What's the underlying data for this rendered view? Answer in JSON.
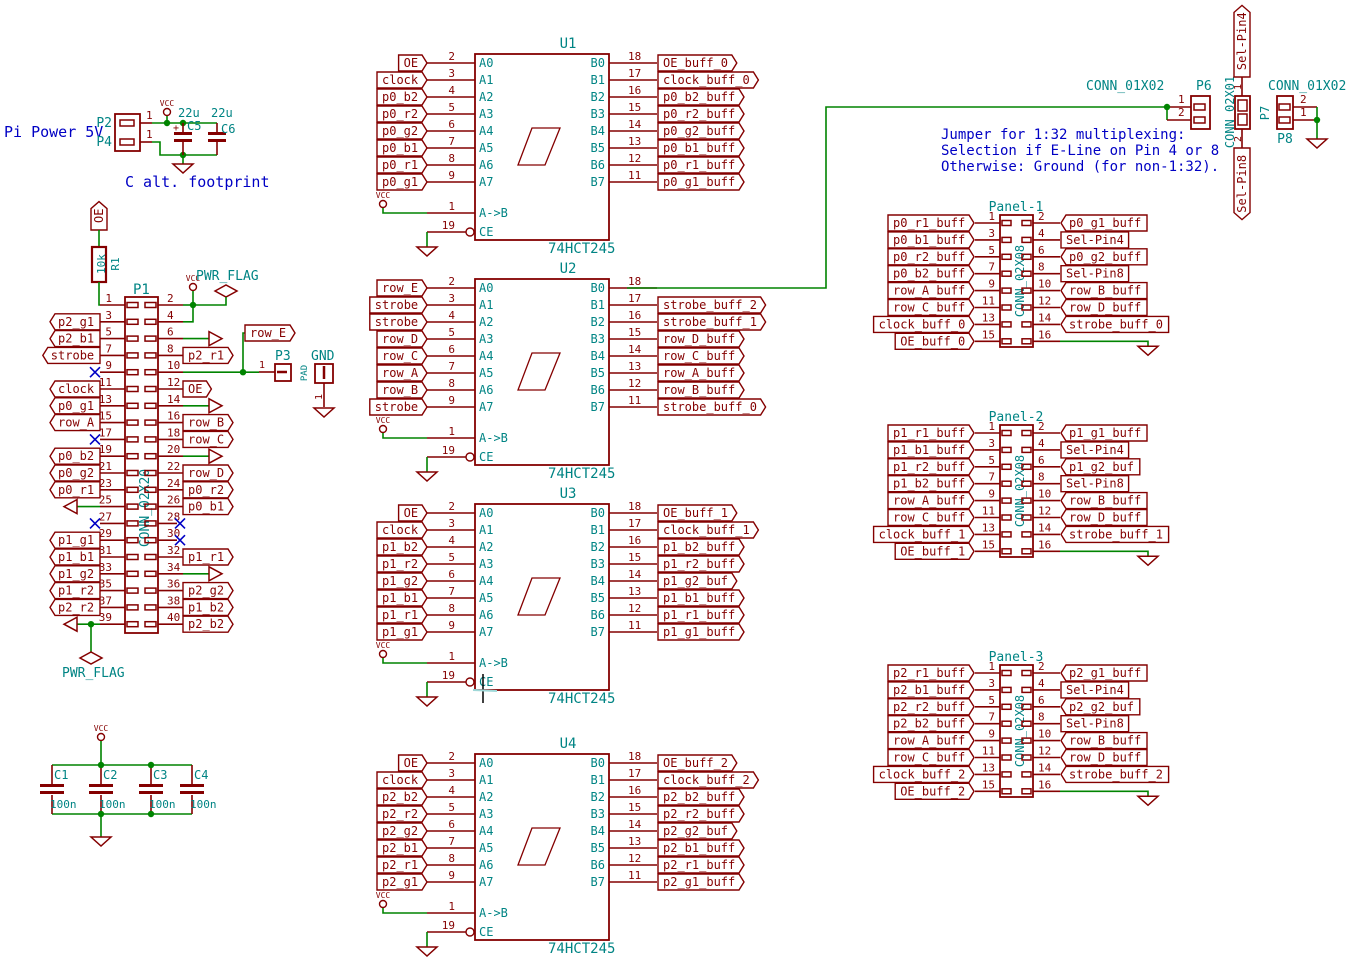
{
  "colors": {
    "wire": "#008400",
    "component": "#840000",
    "field": "#008484",
    "note": "#0000C4",
    "noconnect": "#0000C4"
  },
  "texts": {
    "pi_power": "Pi Power 5V",
    "c_alt": "C alt. footprint",
    "vcc": "VCC",
    "pwr_flag": "PWR_FLAG",
    "row_e": "row_E"
  },
  "jumper_note": [
    "Jumper for 1:32 multiplexing:",
    "Selection if E-Line on Pin 4 or 8",
    "Otherwise: Ground (for non-1:32)."
  ],
  "power_conn": {
    "p2": {
      "ref": "P2",
      "pin": "1"
    },
    "p4": {
      "ref": "P4",
      "pin": "1"
    },
    "c5": {
      "ref": "C5",
      "value": "22u",
      "plus": "+"
    },
    "c6": {
      "ref": "C6",
      "value": "22u"
    }
  },
  "r1": {
    "ref": "R1",
    "value": "10k",
    "label": "OE"
  },
  "p3": {
    "ref": "P3",
    "pin": "1",
    "pad": "PAD"
  },
  "gnd_pad": {
    "ref": "GND",
    "pin": "1"
  },
  "caps": [
    [
      "C1",
      "100n"
    ],
    [
      "C2",
      "100n"
    ],
    [
      "C3",
      "100n"
    ],
    [
      "C4",
      "100n"
    ]
  ],
  "p1": {
    "ref": "P1",
    "value": "CONN_02X20",
    "left": [
      {
        "num": "1"
      },
      {
        "num": "3",
        "label": "p2_g1"
      },
      {
        "num": "5",
        "label": "p2_b1"
      },
      {
        "num": "7",
        "label": "strobe"
      },
      {
        "num": "9",
        "nc": true
      },
      {
        "num": "11",
        "label": "clock"
      },
      {
        "num": "13",
        "label": "p0_g1"
      },
      {
        "num": "15",
        "label": "row_A"
      },
      {
        "num": "17",
        "nc": true
      },
      {
        "num": "19",
        "label": "p0_b2"
      },
      {
        "num": "21",
        "label": "p0_g2"
      },
      {
        "num": "23",
        "label": "p0_r1"
      },
      {
        "num": "25",
        "gnd": true
      },
      {
        "num": "27",
        "nc": true
      },
      {
        "num": "29",
        "label": "p1_g1"
      },
      {
        "num": "31",
        "label": "p1_b1"
      },
      {
        "num": "33",
        "label": "p1_g2"
      },
      {
        "num": "35",
        "label": "p1_r2"
      },
      {
        "num": "37",
        "label": "p2_r2"
      },
      {
        "num": "39",
        "gnd": true
      }
    ],
    "right": [
      {
        "num": "2"
      },
      {
        "num": "4"
      },
      {
        "num": "6",
        "gnd": true
      },
      {
        "num": "8",
        "label": "p2_r1"
      },
      {
        "num": "10"
      },
      {
        "num": "12",
        "label": "OE"
      },
      {
        "num": "14",
        "gnd": true
      },
      {
        "num": "16",
        "label": "row_B"
      },
      {
        "num": "18",
        "label": "row_C"
      },
      {
        "num": "20",
        "gnd": true
      },
      {
        "num": "22",
        "label": "row_D"
      },
      {
        "num": "24",
        "label": "p0_r2"
      },
      {
        "num": "26",
        "label": "p0_b1"
      },
      {
        "num": "28",
        "nc": true
      },
      {
        "num": "30",
        "nc": true
      },
      {
        "num": "32",
        "label": "p1_r1"
      },
      {
        "num": "34",
        "gnd": true
      },
      {
        "num": "36",
        "label": "p2_g2"
      },
      {
        "num": "38",
        "label": "p1_b2"
      },
      {
        "num": "40",
        "label": "p2_b2"
      }
    ]
  },
  "ics": [
    {
      "ref": "U1",
      "value": "74HCT245",
      "dir_pin": {
        "num": "1",
        "name": "A->B"
      },
      "en_pin": {
        "num": "19",
        "name": "CE"
      },
      "left": [
        [
          "2",
          "A0",
          "OE"
        ],
        [
          "3",
          "A1",
          "clock"
        ],
        [
          "4",
          "A2",
          "p0_b2"
        ],
        [
          "5",
          "A3",
          "p0_r2"
        ],
        [
          "6",
          "A4",
          "p0_g2"
        ],
        [
          "7",
          "A5",
          "p0_b1"
        ],
        [
          "8",
          "A6",
          "p0_r1"
        ],
        [
          "9",
          "A7",
          "p0_g1"
        ]
      ],
      "right": [
        [
          "18",
          "B0",
          "OE_buff_0"
        ],
        [
          "17",
          "B1",
          "clock_buff_0"
        ],
        [
          "16",
          "B2",
          "p0_b2_buff"
        ],
        [
          "15",
          "B3",
          "p0_r2_buff"
        ],
        [
          "14",
          "B4",
          "p0_g2_buff"
        ],
        [
          "13",
          "B5",
          "p0_b1_buff"
        ],
        [
          "12",
          "B6",
          "p0_r1_buff"
        ],
        [
          "11",
          "B7",
          "p0_g1_buff"
        ]
      ]
    },
    {
      "ref": "U2",
      "value": "74HCT245",
      "dir_pin": {
        "num": "1",
        "name": "A->B"
      },
      "en_pin": {
        "num": "19",
        "name": "CE"
      },
      "left": [
        [
          "2",
          "A0",
          "row_E"
        ],
        [
          "3",
          "A1",
          "strobe"
        ],
        [
          "4",
          "A2",
          "strobe"
        ],
        [
          "5",
          "A3",
          "row_D"
        ],
        [
          "6",
          "A4",
          "row_C"
        ],
        [
          "7",
          "A5",
          "row_A"
        ],
        [
          "8",
          "A6",
          "row_B"
        ],
        [
          "9",
          "A7",
          "strobe"
        ]
      ],
      "right": [
        [
          "18",
          "B0",
          null
        ],
        [
          "17",
          "B1",
          "strobe_buff_2"
        ],
        [
          "16",
          "B2",
          "strobe_buff_1"
        ],
        [
          "15",
          "B3",
          "row_D_buff"
        ],
        [
          "14",
          "B4",
          "row_C_buff"
        ],
        [
          "13",
          "B5",
          "row_A_buff"
        ],
        [
          "12",
          "B6",
          "row_B_buff"
        ],
        [
          "11",
          "B7",
          "strobe_buff_0"
        ]
      ]
    },
    {
      "ref": "U3",
      "value": "74HCT245",
      "dir_pin": {
        "num": "1",
        "name": "A->B"
      },
      "en_pin": {
        "num": "19",
        "name": "CE"
      },
      "left": [
        [
          "2",
          "A0",
          "OE"
        ],
        [
          "3",
          "A1",
          "clock"
        ],
        [
          "4",
          "A2",
          "p1_b2"
        ],
        [
          "5",
          "A3",
          "p1_r2"
        ],
        [
          "6",
          "A4",
          "p1_g2"
        ],
        [
          "7",
          "A5",
          "p1_b1"
        ],
        [
          "8",
          "A6",
          "p1_r1"
        ],
        [
          "9",
          "A7",
          "p1_g1"
        ]
      ],
      "right": [
        [
          "18",
          "B0",
          "OE_buff_1"
        ],
        [
          "17",
          "B1",
          "clock_buff_1"
        ],
        [
          "16",
          "B2",
          "p1_b2_buff"
        ],
        [
          "15",
          "B3",
          "p1_r2_buff"
        ],
        [
          "14",
          "B4",
          "p1_g2_buf"
        ],
        [
          "13",
          "B5",
          "p1_b1_buff"
        ],
        [
          "12",
          "B6",
          "p1_r1_buff"
        ],
        [
          "11",
          "B7",
          "p1_g1_buff"
        ]
      ]
    },
    {
      "ref": "U4",
      "value": "74HCT245",
      "dir_pin": {
        "num": "1",
        "name": "A->B"
      },
      "en_pin": {
        "num": "19",
        "name": "CE"
      },
      "left": [
        [
          "2",
          "A0",
          "OE"
        ],
        [
          "3",
          "A1",
          "clock"
        ],
        [
          "4",
          "A2",
          "p2_b2"
        ],
        [
          "5",
          "A3",
          "p2_r2"
        ],
        [
          "6",
          "A4",
          "p2_g2"
        ],
        [
          "7",
          "A5",
          "p2_b1"
        ],
        [
          "8",
          "A6",
          "p2_r1"
        ],
        [
          "9",
          "A7",
          "p2_g1"
        ]
      ],
      "right": [
        [
          "18",
          "B0",
          "OE_buff_2"
        ],
        [
          "17",
          "B1",
          "clock_buff_2"
        ],
        [
          "16",
          "B2",
          "p2_b2_buff"
        ],
        [
          "15",
          "B3",
          "p2_r2_buff"
        ],
        [
          "14",
          "B4",
          "p2_g2_buf"
        ],
        [
          "13",
          "B5",
          "p2_b1_buff"
        ],
        [
          "12",
          "B6",
          "p2_r1_buff"
        ],
        [
          "11",
          "B7",
          "p2_g1_buff"
        ]
      ]
    }
  ],
  "panels": [
    {
      "ref": "Panel-1",
      "value": "CONN_02X08",
      "left": [
        [
          "1",
          "p0_r1_buff"
        ],
        [
          "3",
          "p0_b1_buff"
        ],
        [
          "5",
          "p0_r2_buff"
        ],
        [
          "7",
          "p0_b2_buff"
        ],
        [
          "9",
          "row_A_buff"
        ],
        [
          "11",
          "row_C_buff"
        ],
        [
          "13",
          "clock_buff_0"
        ],
        [
          "15",
          "OE_buff_0"
        ]
      ],
      "right": [
        [
          "2",
          "p0_g1_buff",
          "label"
        ],
        [
          "4",
          "Sel-Pin4",
          "rect"
        ],
        [
          "6",
          "p0_g2_buff",
          "label"
        ],
        [
          "8",
          "Sel-Pin8",
          "rect"
        ],
        [
          "10",
          "row_B_buff",
          "label"
        ],
        [
          "12",
          "row_D_buff",
          "label"
        ],
        [
          "14",
          "strobe_buff_0",
          "label"
        ],
        [
          "16",
          null,
          null
        ]
      ]
    },
    {
      "ref": "Panel-2",
      "value": "CONN_02X08",
      "left": [
        [
          "1",
          "p1_r1_buff"
        ],
        [
          "3",
          "p1_b1_buff"
        ],
        [
          "5",
          "p1_r2_buff"
        ],
        [
          "7",
          "p1_b2_buff"
        ],
        [
          "9",
          "row_A_buff"
        ],
        [
          "11",
          "row_C_buff"
        ],
        [
          "13",
          "clock_buff_1"
        ],
        [
          "15",
          "OE_buff_1"
        ]
      ],
      "right": [
        [
          "2",
          "p1_g1_buff",
          "label"
        ],
        [
          "4",
          "Sel-Pin4",
          "rect"
        ],
        [
          "6",
          "p1_g2_buf",
          "label"
        ],
        [
          "8",
          "Sel-Pin8",
          "rect"
        ],
        [
          "10",
          "row_B_buff",
          "label"
        ],
        [
          "12",
          "row_D_buff",
          "label"
        ],
        [
          "14",
          "strobe_buff_1",
          "label"
        ],
        [
          "16",
          null,
          null
        ]
      ]
    },
    {
      "ref": "Panel-3",
      "value": "CONN_02X08",
      "left": [
        [
          "1",
          "p2_r1_buff"
        ],
        [
          "3",
          "p2_b1_buff"
        ],
        [
          "5",
          "p2_r2_buff"
        ],
        [
          "7",
          "p2_b2_buff"
        ],
        [
          "9",
          "row_A_buff"
        ],
        [
          "11",
          "row_C_buff"
        ],
        [
          "13",
          "clock_buff_2"
        ],
        [
          "15",
          "OE_buff_2"
        ]
      ],
      "right": [
        [
          "2",
          "p2_g1_buff",
          "label"
        ],
        [
          "4",
          "Sel-Pin4",
          "rect"
        ],
        [
          "6",
          "p2_g2_buf",
          "label"
        ],
        [
          "8",
          "Sel-Pin8",
          "rect"
        ],
        [
          "10",
          "row_B_buff",
          "label"
        ],
        [
          "12",
          "row_D_buff",
          "label"
        ],
        [
          "14",
          "strobe_buff_2",
          "label"
        ],
        [
          "16",
          null,
          null
        ]
      ]
    }
  ],
  "p6": {
    "ref": "P6",
    "value": "CONN_01X02",
    "pin1": "1",
    "pin2": "2"
  },
  "p7": {
    "ref": "P7",
    "value": "CONN_02X01",
    "pin1": "1",
    "pin2": "2",
    "top": "Sel-Pin4",
    "bottom": "Sel-Pin8"
  },
  "p8": {
    "ref": "P8",
    "value": "CONN_01X02",
    "pin1": "1",
    "pin2": "2"
  }
}
